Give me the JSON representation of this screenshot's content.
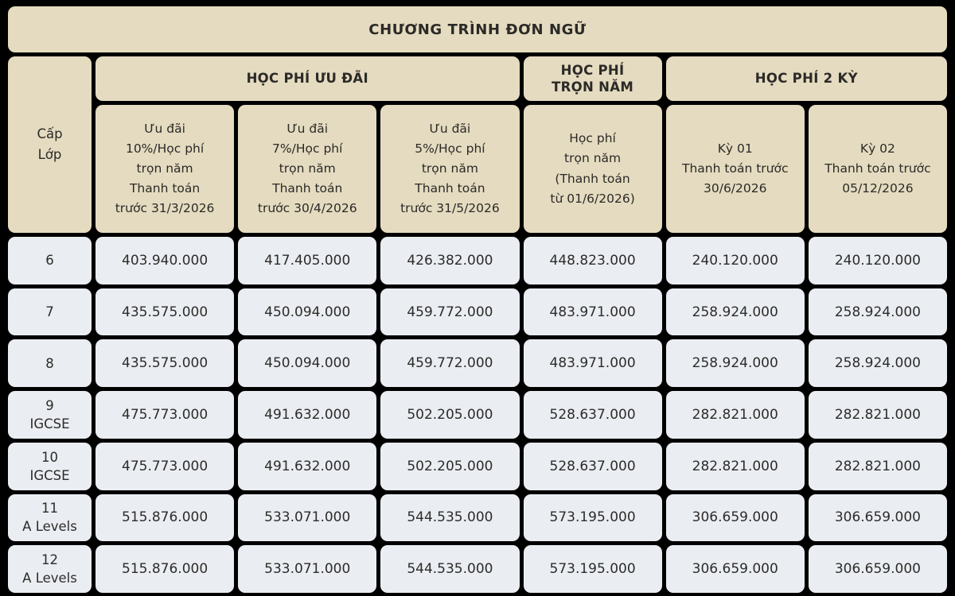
{
  "title": "CHƯƠNG TRÌNH ĐƠN NGỮ",
  "colors": {
    "page_bg": "#000000",
    "header_bg": "#e5dbc0",
    "cell_bg": "#eaedf2",
    "text": "#2b2a27"
  },
  "header": {
    "grade_label": "Cấp\nLớp",
    "groups": [
      {
        "label": "HỌC PHÍ ƯU ĐÃI",
        "span": 3
      },
      {
        "label": "HỌC PHÍ\nTRỌN NĂM",
        "span": 1
      },
      {
        "label": "HỌC PHÍ 2 KỲ",
        "span": 2
      }
    ],
    "columns": [
      {
        "label": "Ưu đãi\n10%/Học phí\ntrọn năm\nThanh toán\ntrước 31/3/2026"
      },
      {
        "label": "Ưu đãi\n7%/Học phí\ntrọn năm\nThanh toán\ntrước 30/4/2026"
      },
      {
        "label": "Ưu đãi\n5%/Học phí\ntrọn năm\nThanh toán\ntrước 31/5/2026"
      },
      {
        "label": "Học phí\ntrọn năm\n(Thanh toán\ntừ 01/6/2026)"
      },
      {
        "label": "Kỳ 01\nThanh toán trước\n30/6/2026"
      },
      {
        "label": "Kỳ 02\nThanh toán trước\n05/12/2026"
      }
    ]
  },
  "rows": [
    {
      "grade": "6",
      "values": [
        "403.940.000",
        "417.405.000",
        "426.382.000",
        "448.823.000",
        "240.120.000",
        "240.120.000"
      ]
    },
    {
      "grade": "7",
      "values": [
        "435.575.000",
        "450.094.000",
        "459.772.000",
        "483.971.000",
        "258.924.000",
        "258.924.000"
      ]
    },
    {
      "grade": "8",
      "values": [
        "435.575.000",
        "450.094.000",
        "459.772.000",
        "483.971.000",
        "258.924.000",
        "258.924.000"
      ]
    },
    {
      "grade": "9\nIGCSE",
      "values": [
        "475.773.000",
        "491.632.000",
        "502.205.000",
        "528.637.000",
        "282.821.000",
        "282.821.000"
      ]
    },
    {
      "grade": "10\nIGCSE",
      "values": [
        "475.773.000",
        "491.632.000",
        "502.205.000",
        "528.637.000",
        "282.821.000",
        "282.821.000"
      ]
    },
    {
      "grade": "11\nA Levels",
      "values": [
        "515.876.000",
        "533.071.000",
        "544.535.000",
        "573.195.000",
        "306.659.000",
        "306.659.000"
      ]
    },
    {
      "grade": "12\nA Levels",
      "values": [
        "515.876.000",
        "533.071.000",
        "544.535.000",
        "573.195.000",
        "306.659.000",
        "306.659.000"
      ]
    }
  ]
}
